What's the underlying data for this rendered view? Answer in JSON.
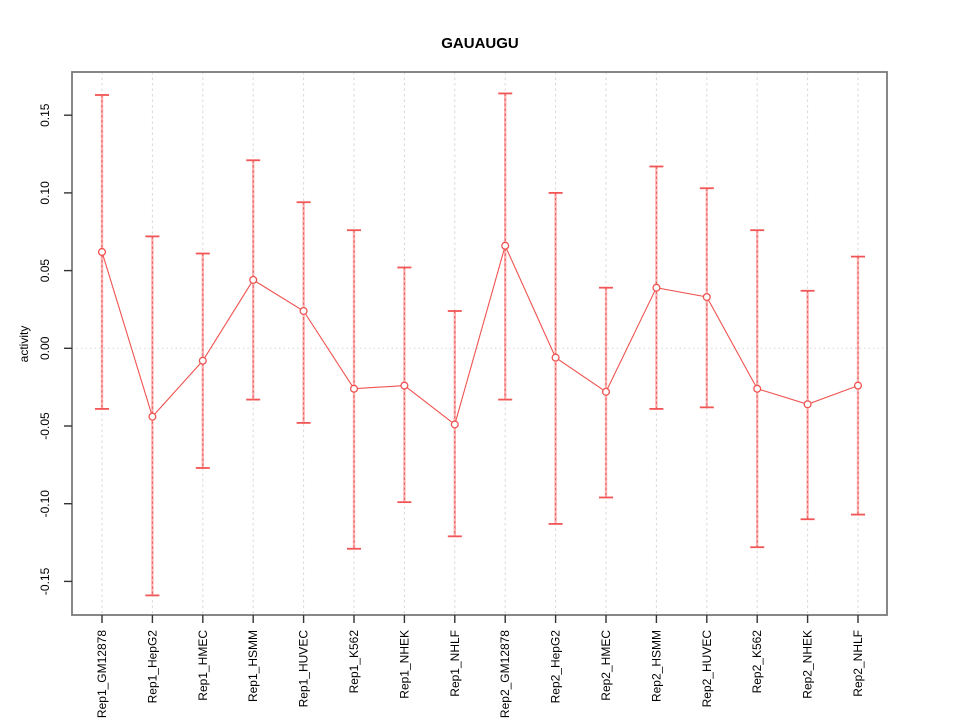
{
  "window": {
    "title": "GAUAUGU"
  },
  "chart_data": {
    "type": "line",
    "title": "GAUAUGU",
    "xlabel": "",
    "ylabel": "activity",
    "legend": "none",
    "grid": "vertical dashed gridline at each category; dotted horizontal line at zero",
    "ylim": [
      -0.175,
      0.18
    ],
    "ytick_labels": [
      "0.15",
      "0.10",
      "0.05",
      "0.00",
      "-0.05",
      "-0.10",
      "-0.15"
    ],
    "ytick_values": [
      0.15,
      0.1,
      0.05,
      0.0,
      -0.05,
      -0.1,
      -0.15
    ],
    "categories": [
      "Rep1_GM12878",
      "Rep1_HepG2",
      "Rep1_HMEC",
      "Rep1_HSMM",
      "Rep1_HUVEC",
      "Rep1_K562",
      "Rep1_NHEK",
      "Rep1_NHLF",
      "Rep2_GM12878",
      "Rep2_HepG2",
      "Rep2_HMEC",
      "Rep2_HSMM",
      "Rep2_HUVEC",
      "Rep2_K562",
      "Rep2_NHEK",
      "Rep2_NHLF"
    ],
    "series": [
      {
        "name": "activity",
        "values": [
          0.062,
          -0.044,
          -0.008,
          0.044,
          0.024,
          -0.026,
          -0.024,
          -0.049,
          0.066,
          -0.006,
          -0.028,
          0.039,
          0.033,
          -0.026,
          -0.036,
          -0.024
        ],
        "error_high": [
          0.163,
          0.072,
          0.061,
          0.121,
          0.094,
          0.076,
          0.052,
          0.024,
          0.164,
          0.1,
          0.039,
          0.117,
          0.103,
          0.076,
          0.037,
          0.059
        ],
        "error_low": [
          -0.039,
          -0.159,
          -0.077,
          -0.033,
          -0.048,
          -0.129,
          -0.099,
          -0.121,
          -0.033,
          -0.113,
          -0.096,
          -0.039,
          -0.038,
          -0.128,
          -0.11,
          -0.107
        ]
      }
    ],
    "colors": {
      "series": "#ef5350",
      "error_bar_light": "#ffb3b3",
      "error_bar_dash": "#e35d5d",
      "error_cap": "#f25555",
      "grid": "#d9d9d9",
      "zero_line": "#d8d8d8",
      "frame": "#7a7a7a",
      "tick": "#333333"
    }
  }
}
